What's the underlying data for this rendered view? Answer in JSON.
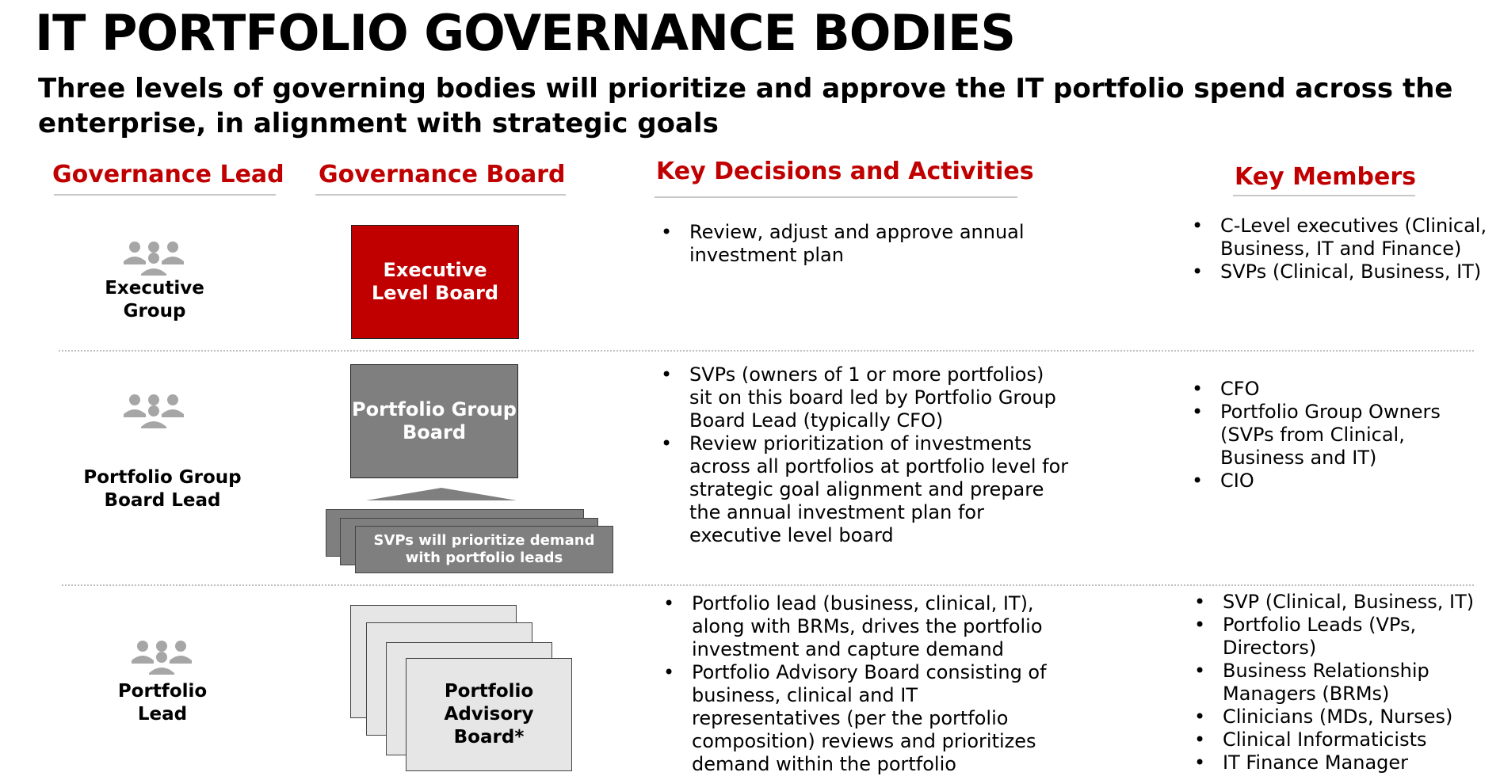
{
  "title": "IT PORTFOLIO GOVERNANCE BODIES",
  "subtitle": "Three levels of governing bodies will prioritize and approve the IT portfolio spend across the enterprise, in alignment with strategic goals",
  "columns": {
    "lead": "Governance Lead",
    "board": "Governance Board",
    "decisions": "Key Decisions and Activities",
    "members": "Key Members"
  },
  "rows": [
    {
      "lead_label": "Executive Group",
      "board_label": "Executive Level Board",
      "decisions": [
        "Review, adjust and approve annual investment plan"
      ],
      "members": [
        "C-Level executives (Clinical, Business, IT and Finance)",
        "SVPs (Clinical, Business, IT)"
      ]
    },
    {
      "lead_label": "Portfolio Group Board Lead",
      "board_label": "Portfolio Group Board",
      "svp_card": "SVPs will prioritize demand with portfolio leads",
      "decisions": [
        "SVPs (owners of 1 or more portfolios) sit on this board led by Portfolio Group Board Lead (typically CFO)",
        "Review prioritization of investments across all portfolios at portfolio level for strategic goal alignment and prepare the annual investment plan for executive level board"
      ],
      "members": [
        "CFO",
        "Portfolio Group Owners (SVPs from Clinical, Business and IT)",
        "CIO"
      ]
    },
    {
      "lead_label": "Portfolio Lead",
      "board_label": "Portfolio Advisory Board*",
      "decisions": [
        "Portfolio lead (business, clinical, IT), along with BRMs, drives the portfolio investment and capture demand",
        "Portfolio Advisory Board consisting of business, clinical and IT representatives (per the portfolio composition) reviews and prioritizes demand within the portfolio"
      ],
      "members": [
        "SVP (Clinical, Business, IT)",
        "Portfolio Leads (VPs, Directors)",
        "Business Relationship Managers (BRMs)",
        "Clinicians (MDs, Nurses)",
        "Clinical Informaticists",
        "IT Finance Manager"
      ]
    }
  ],
  "colors": {
    "accent": "#c00000",
    "grey": "#7f7f7f",
    "light_card": "#e6e6e6",
    "icon": "#a6a6a6"
  },
  "icons": {
    "people": "people-group-icon",
    "triangle": "triangle-up-icon"
  }
}
